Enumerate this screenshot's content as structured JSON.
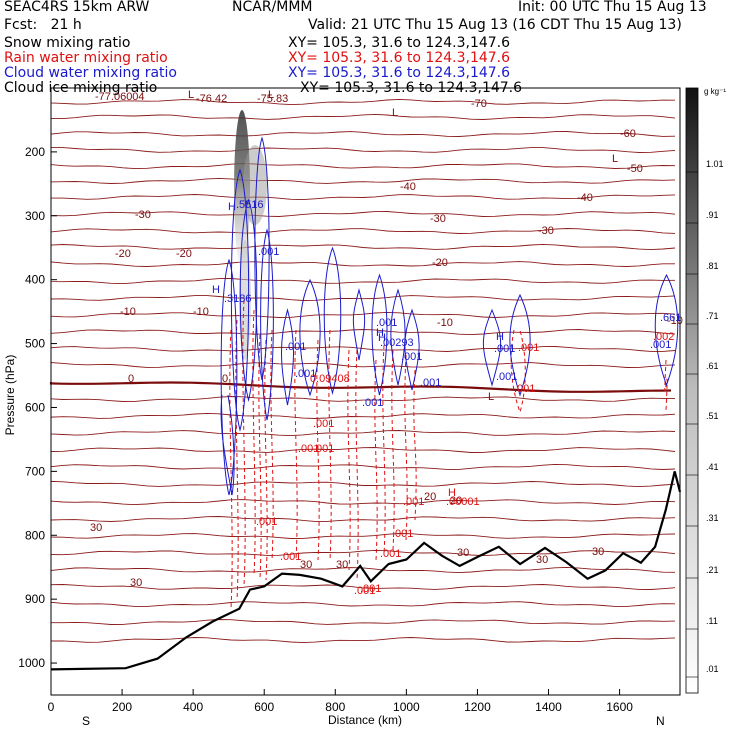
{
  "header": {
    "model": "SEAC4RS 15km ARW",
    "center": "NCAR/MMM",
    "init": "Init: 00 UTC Thu 15 Aug 13",
    "fcst_label": "Fcst:",
    "fcst_value": "21 h",
    "valid": "Valid: 21 UTC Thu 15 Aug 13 (16 CDT Thu 15 Aug 13)"
  },
  "fields": [
    {
      "name": "Snow mixing ratio",
      "xy": "XY= 105.3, 31.6 to 124.3,147.6",
      "color": "#000000"
    },
    {
      "name": "Rain water mixing ratio",
      "xy": "XY= 105.3, 31.6 to 124.3,147.6",
      "color": "#e01010"
    },
    {
      "name": "Cloud water mixing ratio",
      "xy": "XY= 105.3, 31.6 to 124.3,147.6",
      "color": "#1a1acc"
    },
    {
      "name": "Cloud ice mixing ratio",
      "xy": "XY= 105.3, 31.6 to 124.3,147.6",
      "color": "#000000"
    }
  ],
  "chart_data": {
    "type": "contour cross-section",
    "xlabel": "Distance (km)",
    "ylabel": "Pressure (hPa)",
    "xlim": [
      0,
      1770
    ],
    "ylim": [
      1050,
      100
    ],
    "xticks": [
      0,
      200,
      400,
      600,
      800,
      1000,
      1200,
      1400,
      1600
    ],
    "yticks": [
      200,
      300,
      400,
      500,
      600,
      700,
      800,
      900,
      1000
    ],
    "x_end_labels": {
      "left": "S",
      "right": "N"
    },
    "colorbar": {
      "unit": "g kg⁻¹",
      "ticks": [
        ".01",
        ".11",
        ".21",
        ".31",
        ".41",
        ".51",
        ".61",
        ".71",
        ".81",
        ".91",
        "1.01"
      ]
    },
    "temperature_contour_labels": [
      "-77.06004",
      "-76.42",
      "-75.83",
      "-70",
      "-60",
      "-50",
      "-40",
      "-40",
      "-30",
      "-30",
      "-30",
      "-20",
      "-20",
      "-20",
      "-10",
      "-10",
      "-10",
      "-10",
      "0",
      "0",
      "20",
      "20",
      "30",
      "30",
      "30",
      "30",
      "30",
      "30",
      "30"
    ],
    "cloud_water_labels": [
      "H",
      ".5516",
      ".001",
      "H",
      ".3186",
      ".001",
      ".001",
      ".001",
      "H",
      ".001",
      "H",
      ".001",
      ".001",
      "H",
      ".00293",
      ".001",
      ".001",
      ".661",
      ".001"
    ],
    "rain_water_labels": [
      "0.09408",
      ".001",
      ".001",
      ".001",
      ".001",
      ".001",
      ".001",
      ".001",
      ".001",
      ".001",
      ".001",
      ".001",
      ".001",
      ".002",
      "H",
      ".00001"
    ],
    "local_labels": [
      "L",
      "L",
      "L",
      "L",
      "L"
    ],
    "terrain_profile": [
      [
        0,
        1010
      ],
      [
        210,
        1008
      ],
      [
        300,
        993
      ],
      [
        380,
        960
      ],
      [
        455,
        935
      ],
      [
        530,
        915
      ],
      [
        560,
        885
      ],
      [
        600,
        880
      ],
      [
        650,
        860
      ],
      [
        700,
        862
      ],
      [
        760,
        868
      ],
      [
        820,
        880
      ],
      [
        870,
        848
      ],
      [
        900,
        872
      ],
      [
        950,
        845
      ],
      [
        1000,
        838
      ],
      [
        1050,
        812
      ],
      [
        1100,
        832
      ],
      [
        1150,
        848
      ],
      [
        1200,
        834
      ],
      [
        1260,
        818
      ],
      [
        1320,
        845
      ],
      [
        1390,
        820
      ],
      [
        1450,
        842
      ],
      [
        1510,
        868
      ],
      [
        1560,
        855
      ],
      [
        1610,
        828
      ],
      [
        1660,
        843
      ],
      [
        1700,
        818
      ],
      [
        1730,
        760
      ],
      [
        1755,
        700
      ],
      [
        1770,
        732
      ]
    ]
  }
}
